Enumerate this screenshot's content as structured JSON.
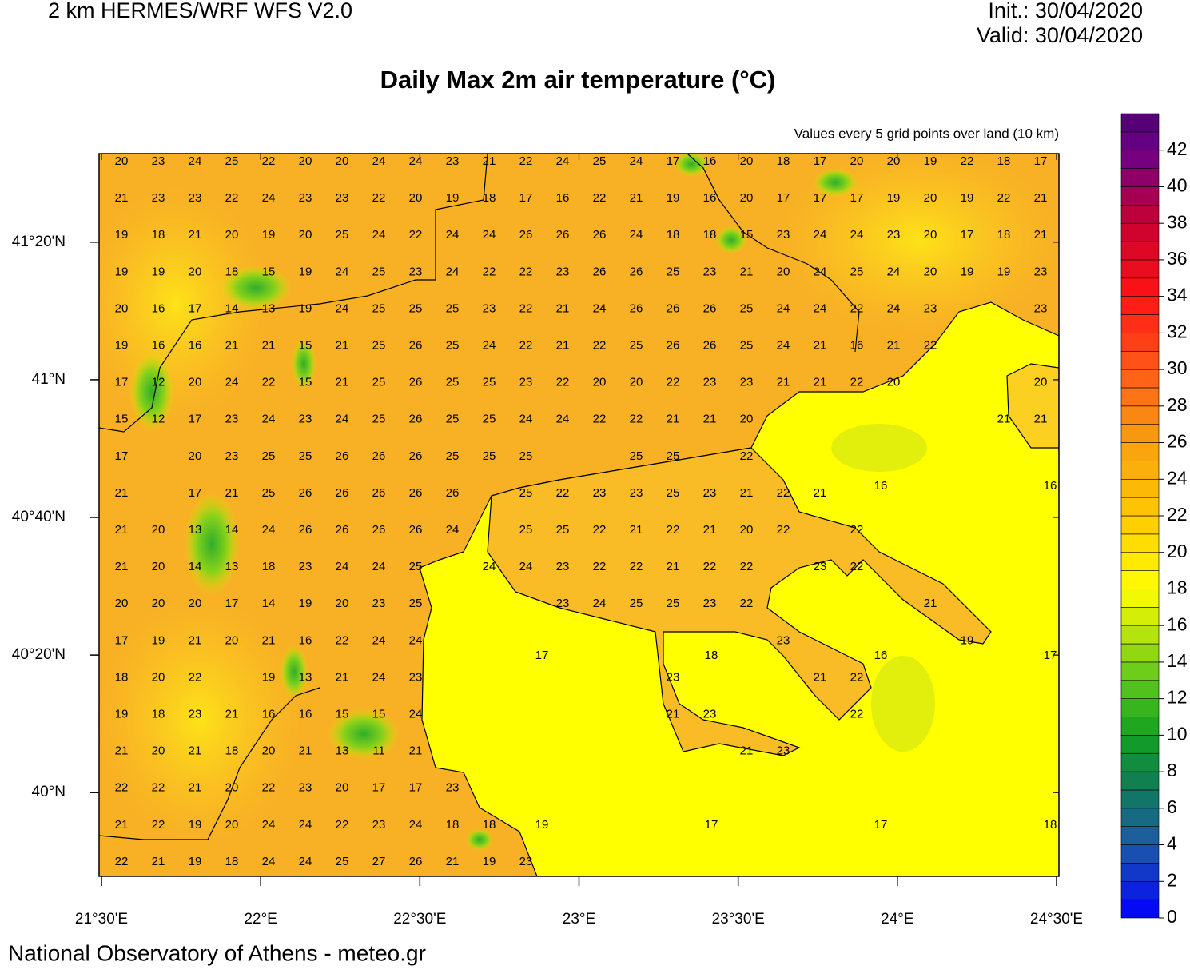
{
  "header": {
    "model": "2 km HERMES/WRF WFS V2.0",
    "init": "Init.: 30/04/2020",
    "valid": "Valid: 30/04/2020"
  },
  "title": "Daily Max 2m air temperature (°C)",
  "subtitle": "Values every 5 grid points over land (10 km)",
  "footer": "National Observatory of Athens - meteo.gr",
  "map": {
    "xlim": [
      21.4925,
      24.5075
    ],
    "ylim": [
      39.797,
      41.548
    ],
    "xticks": [
      {
        "value": 21.5,
        "label": "21°30'E"
      },
      {
        "value": 22,
        "label": "22°E"
      },
      {
        "value": 22.5,
        "label": "22°30'E"
      },
      {
        "value": 23,
        "label": "23°E"
      },
      {
        "value": 23.5,
        "label": "23°30'E"
      },
      {
        "value": 24,
        "label": "24°E"
      },
      {
        "value": 24.5,
        "label": "24°30'E"
      }
    ],
    "yticks": [
      {
        "value": 41.3333,
        "label": "41°20'N"
      },
      {
        "value": 41,
        "label": "41°N"
      },
      {
        "value": 40.6667,
        "label": "40°40'N"
      },
      {
        "value": 40.3333,
        "label": "40°20'N"
      },
      {
        "value": 40,
        "label": "40°N"
      }
    ],
    "land_values": [
      [
        20,
        23,
        24,
        25,
        22,
        20,
        20,
        24,
        24,
        23,
        21,
        22,
        24,
        25,
        24,
        17,
        16,
        20,
        18,
        17,
        20,
        20,
        19,
        22,
        18,
        17
      ],
      [
        21,
        23,
        23,
        22,
        24,
        23,
        23,
        22,
        20,
        19,
        18,
        17,
        16,
        22,
        21,
        19,
        16,
        20,
        17,
        17,
        17,
        19,
        20,
        19,
        22,
        21
      ],
      [
        19,
        18,
        21,
        20,
        19,
        20,
        25,
        24,
        22,
        24,
        24,
        26,
        26,
        26,
        24,
        18,
        18,
        15,
        23,
        24,
        24,
        23,
        20,
        17,
        18,
        21
      ],
      [
        19,
        19,
        20,
        18,
        15,
        19,
        24,
        25,
        23,
        24,
        22,
        22,
        23,
        26,
        26,
        25,
        23,
        21,
        20,
        24,
        25,
        24,
        20,
        19,
        19,
        23
      ],
      [
        20,
        16,
        17,
        14,
        13,
        19,
        24,
        25,
        25,
        25,
        23,
        22,
        21,
        24,
        26,
        26,
        26,
        25,
        24,
        24,
        22,
        24,
        23,
        null,
        null,
        23
      ],
      [
        19,
        16,
        16,
        21,
        21,
        15,
        21,
        25,
        26,
        25,
        24,
        22,
        21,
        22,
        25,
        26,
        26,
        25,
        24,
        21,
        16,
        21,
        22,
        null,
        null,
        null
      ],
      [
        17,
        12,
        20,
        24,
        22,
        15,
        21,
        25,
        26,
        25,
        25,
        23,
        22,
        20,
        20,
        22,
        23,
        23,
        21,
        21,
        22,
        20,
        null,
        null,
        null,
        20
      ],
      [
        15,
        12,
        17,
        23,
        24,
        23,
        24,
        25,
        26,
        25,
        25,
        24,
        24,
        22,
        22,
        21,
        21,
        20,
        null,
        null,
        null,
        null,
        null,
        null,
        21,
        21
      ],
      [
        17,
        null,
        20,
        23,
        25,
        25,
        26,
        26,
        26,
        25,
        25,
        25,
        null,
        null,
        25,
        25,
        null,
        22,
        null,
        null,
        null,
        null,
        null,
        null,
        null,
        null
      ],
      [
        21,
        null,
        17,
        21,
        25,
        26,
        26,
        26,
        26,
        26,
        null,
        25,
        22,
        23,
        23,
        25,
        23,
        21,
        22,
        21,
        null,
        null,
        null,
        null,
        null,
        null
      ],
      [
        21,
        20,
        13,
        14,
        24,
        26,
        26,
        26,
        26,
        24,
        null,
        25,
        25,
        22,
        21,
        22,
        21,
        20,
        22,
        null,
        22,
        null,
        null,
        null,
        null,
        null
      ],
      [
        21,
        20,
        14,
        13,
        18,
        23,
        24,
        24,
        25,
        null,
        24,
        24,
        23,
        22,
        22,
        21,
        22,
        22,
        null,
        23,
        22,
        null,
        null,
        null,
        null,
        null
      ],
      [
        20,
        20,
        20,
        17,
        14,
        19,
        20,
        23,
        25,
        null,
        null,
        null,
        23,
        24,
        25,
        25,
        23,
        22,
        null,
        null,
        null,
        null,
        21,
        null,
        null,
        null
      ],
      [
        17,
        19,
        21,
        20,
        21,
        16,
        22,
        24,
        24,
        null,
        null,
        null,
        null,
        null,
        null,
        null,
        null,
        null,
        23,
        null,
        null,
        null,
        null,
        19,
        null,
        null
      ],
      [
        18,
        20,
        22,
        null,
        19,
        13,
        21,
        24,
        23,
        null,
        null,
        null,
        null,
        null,
        null,
        23,
        null,
        null,
        null,
        21,
        22,
        null,
        null,
        null,
        null,
        null
      ],
      [
        19,
        18,
        23,
        21,
        16,
        16,
        15,
        15,
        24,
        null,
        null,
        null,
        null,
        null,
        null,
        21,
        23,
        null,
        null,
        null,
        22,
        null,
        null,
        null,
        null,
        null
      ],
      [
        21,
        20,
        21,
        18,
        20,
        21,
        13,
        11,
        21,
        null,
        null,
        null,
        null,
        null,
        null,
        null,
        null,
        21,
        23,
        null,
        null,
        null,
        null,
        null,
        null,
        null
      ],
      [
        22,
        22,
        21,
        20,
        22,
        23,
        20,
        17,
        17,
        23,
        null,
        null,
        null,
        null,
        null,
        null,
        null,
        null,
        null,
        null,
        null,
        null,
        null,
        null,
        null,
        null
      ],
      [
        21,
        22,
        19,
        20,
        24,
        24,
        22,
        23,
        24,
        18,
        18,
        null,
        null,
        null,
        null,
        null,
        null,
        null,
        null,
        null,
        null,
        null,
        null,
        null,
        null,
        null
      ],
      [
        22,
        21,
        19,
        18,
        24,
        24,
        25,
        27,
        26,
        21,
        19,
        23,
        null,
        null,
        null,
        null,
        null,
        null,
        null,
        null,
        null,
        null,
        null,
        null,
        null,
        null
      ]
    ],
    "sea_values": [
      [
        null,
        null,
        16,
        16
      ],
      [
        17,
        18,
        16,
        17
      ],
      [
        19,
        17,
        17,
        18
      ]
    ]
  },
  "colorbar": {
    "range": [
      0,
      44
    ],
    "ticks": [
      0,
      2,
      4,
      6,
      8,
      10,
      12,
      14,
      16,
      18,
      20,
      22,
      24,
      26,
      28,
      30,
      32,
      34,
      36,
      38,
      40,
      42
    ],
    "stops": [
      {
        "value": 0,
        "color": "#0000ff"
      },
      {
        "value": 4,
        "color": "#1d5aa8"
      },
      {
        "value": 7,
        "color": "#0f7a5a"
      },
      {
        "value": 10,
        "color": "#12a020"
      },
      {
        "value": 13,
        "color": "#5cc81c"
      },
      {
        "value": 16,
        "color": "#c6e80a"
      },
      {
        "value": 18,
        "color": "#ffff00"
      },
      {
        "value": 22,
        "color": "#ffc800"
      },
      {
        "value": 26,
        "color": "#f7a010"
      },
      {
        "value": 30,
        "color": "#ff5a18"
      },
      {
        "value": 34,
        "color": "#ff1414"
      },
      {
        "value": 38,
        "color": "#c80030"
      },
      {
        "value": 42,
        "color": "#6a0088"
      },
      {
        "value": 44,
        "color": "#500070"
      }
    ]
  }
}
